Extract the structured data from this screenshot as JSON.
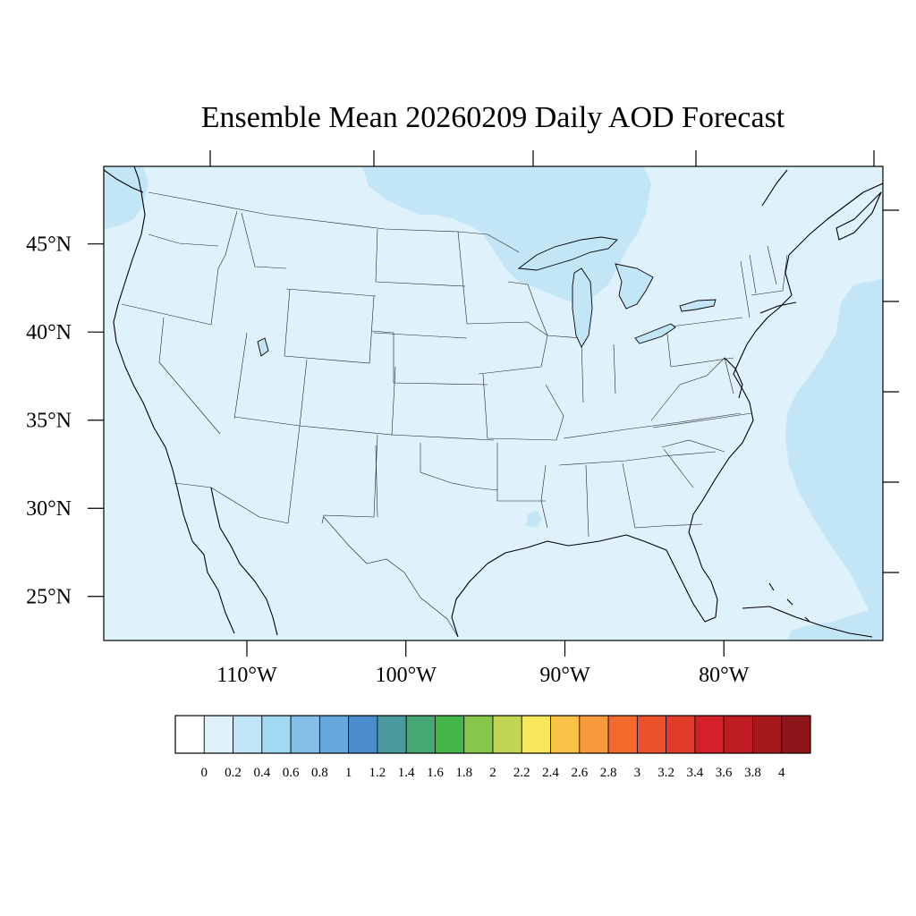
{
  "title": "Ensemble Mean 20260209 Daily AOD Forecast",
  "map": {
    "region": "CONUS",
    "projection": "cylindrical",
    "lon_range": [
      -119,
      -70
    ],
    "lat_range": [
      22.5,
      49.4
    ],
    "background_level_color": "#dff2fb",
    "enhanced_level_color": "#c3e6f7",
    "coastline_color": "#000000",
    "state_border_color": "#222222"
  },
  "axes": {
    "x_ticks": [
      {
        "lon": -110,
        "label": "110°W"
      },
      {
        "lon": -100,
        "label": "100°W"
      },
      {
        "lon": -90,
        "label": "90°W"
      },
      {
        "lon": -80,
        "label": "80°W"
      }
    ],
    "y_ticks": [
      {
        "lat": 45,
        "label": "45°N"
      },
      {
        "lat": 40,
        "label": "40°N"
      },
      {
        "lat": 35,
        "label": "35°N"
      },
      {
        "lat": 30,
        "label": "30°N"
      },
      {
        "lat": 25,
        "label": "25°N"
      }
    ]
  },
  "colorbar": {
    "labels": [
      "0",
      "0.2",
      "0.4",
      "0.6",
      "0.8",
      "1",
      "1.2",
      "1.4",
      "1.6",
      "1.8",
      "2",
      "2.2",
      "2.4",
      "2.6",
      "2.8",
      "3",
      "3.2",
      "3.4",
      "3.6",
      "3.8",
      "4"
    ],
    "colors": [
      "#ffffff",
      "#dff2fb",
      "#bfe5f6",
      "#a1d8f2",
      "#83bfe6",
      "#67a8dc",
      "#4a8cca",
      "#4b9aa0",
      "#46a774",
      "#45b649",
      "#86c64c",
      "#c3d653",
      "#f7e75b",
      "#f9c247",
      "#f79a3b",
      "#f36a2d",
      "#ec5229",
      "#e03c27",
      "#d32029",
      "#c01c24",
      "#a7181d",
      "#8e1519"
    ]
  }
}
